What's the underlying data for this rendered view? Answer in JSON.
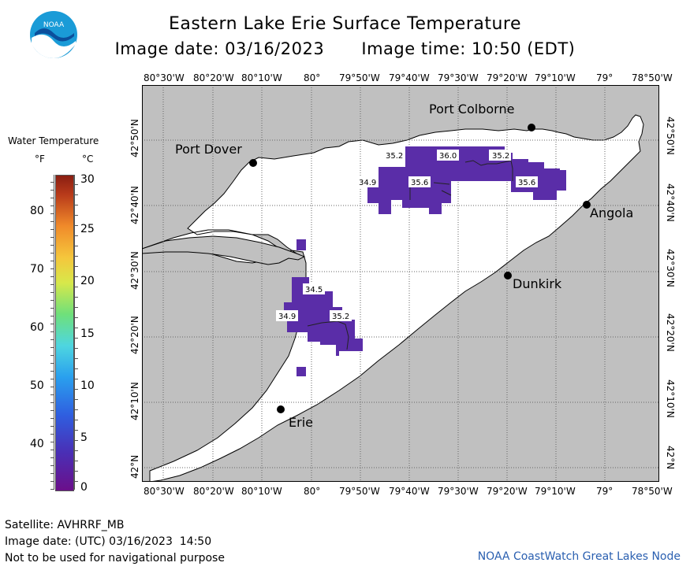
{
  "header": {
    "title": "Eastern Lake Erie Surface Temperature",
    "image_date": "Image date: 03/16/2023",
    "image_time": "Image time: 10:50 (EDT)"
  },
  "logo": {
    "text": "NOAA"
  },
  "lon_labels": [
    "80°30'W",
    "80°20'W",
    "80°10'W",
    "80°",
    "79°50'W",
    "79°40'W",
    "79°30'W",
    "79°20'W",
    "79°10'W",
    "79°",
    "78°50'W"
  ],
  "lat_labels": [
    "42°50'N",
    "42°40'N",
    "42°30'N",
    "42°20'N",
    "42°10'N",
    "42°N"
  ],
  "cities": {
    "port_dover": "Port Dover",
    "port_colborne": "Port Colborne",
    "angola": "Angola",
    "dunkirk": "Dunkirk",
    "erie": "Erie"
  },
  "contour_labels": {
    "east_a": "35.2",
    "east_b": "36.0",
    "east_c": "35.2",
    "east_d": "34.9",
    "east_e": "35.6",
    "east_f": "35.6",
    "west_a": "34.5",
    "west_b": "34.9",
    "west_c": "35.2"
  },
  "legend": {
    "title": "Water Temperature",
    "unit_f": "°F",
    "unit_c": "°C",
    "f_ticks": [
      "80",
      "70",
      "60",
      "50",
      "40"
    ],
    "c_ticks": [
      "30",
      "25",
      "20",
      "15",
      "10",
      "5",
      "0"
    ]
  },
  "footer": {
    "satellite": "Satellite: AVHRRF_MB",
    "utc_date": "Image date: (UTC) 03/16/2023  14:50",
    "disclaimer": "Not to be used for navigational purpose",
    "credit": "NOAA CoastWatch Great Lakes Node"
  },
  "colors": {
    "land": "#c0c0c0",
    "water": "#ffffff",
    "cold_purple": "#5a2da8",
    "grid": "#555555"
  }
}
